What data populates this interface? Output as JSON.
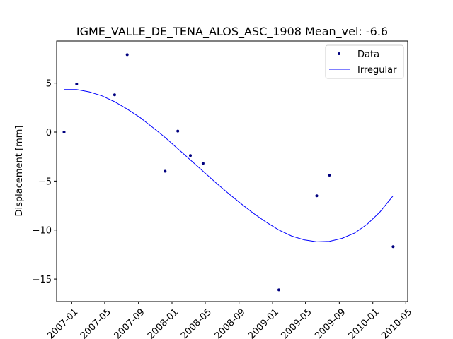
{
  "chart_data": {
    "type": "scatter",
    "title": "IGME_VALLE_DE_TENA_ALOS_ASC_1908    Mean_vel: -6.6",
    "xlabel": "",
    "ylabel": "Displacement [mm]",
    "x_axis_type": "date",
    "xlim": [
      "2006-11-07",
      "2010-05-08"
    ],
    "ylim": [
      -17.3,
      9.3
    ],
    "xticks": [
      "2007-01",
      "2007-05",
      "2007-09",
      "2008-01",
      "2008-05",
      "2008-09",
      "2009-01",
      "2009-05",
      "2009-09",
      "2010-01",
      "2010-05"
    ],
    "yticks": [
      5,
      0,
      -5,
      -10,
      -15
    ],
    "grid": false,
    "legend": {
      "position": "top-right",
      "entries": [
        "Data",
        "Irregular"
      ]
    },
    "series": [
      {
        "name": "Data",
        "kind": "scatter",
        "color": "#00007f",
        "points": [
          {
            "x": "2006-12-04",
            "y": 0.0
          },
          {
            "x": "2007-01-19",
            "y": 4.9
          },
          {
            "x": "2007-06-06",
            "y": 3.8
          },
          {
            "x": "2007-07-22",
            "y": 7.9
          },
          {
            "x": "2007-12-07",
            "y": -4.0
          },
          {
            "x": "2008-01-22",
            "y": 0.1
          },
          {
            "x": "2008-03-08",
            "y": -2.4
          },
          {
            "x": "2008-04-23",
            "y": -3.2
          },
          {
            "x": "2009-01-24",
            "y": -16.1
          },
          {
            "x": "2009-06-11",
            "y": -6.5
          },
          {
            "x": "2009-07-27",
            "y": -4.4
          },
          {
            "x": "2010-03-16",
            "y": -11.7
          }
        ]
      },
      {
        "name": "Irregular",
        "kind": "line",
        "color": "#0000ff",
        "points": [
          {
            "x": "2006-12-04",
            "y": 4.35
          },
          {
            "x": "2007-01-19",
            "y": 4.35
          },
          {
            "x": "2007-03-06",
            "y": 4.1
          },
          {
            "x": "2007-04-21",
            "y": 3.7
          },
          {
            "x": "2007-06-06",
            "y": 3.1
          },
          {
            "x": "2007-07-22",
            "y": 2.35
          },
          {
            "x": "2007-09-06",
            "y": 1.5
          },
          {
            "x": "2007-10-22",
            "y": 0.5
          },
          {
            "x": "2007-12-07",
            "y": -0.55
          },
          {
            "x": "2008-01-22",
            "y": -1.7
          },
          {
            "x": "2008-03-08",
            "y": -2.85
          },
          {
            "x": "2008-04-23",
            "y": -4.0
          },
          {
            "x": "2008-06-08",
            "y": -5.15
          },
          {
            "x": "2008-07-24",
            "y": -6.25
          },
          {
            "x": "2008-09-08",
            "y": -7.3
          },
          {
            "x": "2008-10-24",
            "y": -8.3
          },
          {
            "x": "2008-12-09",
            "y": -9.2
          },
          {
            "x": "2009-01-24",
            "y": -10.0
          },
          {
            "x": "2009-03-11",
            "y": -10.6
          },
          {
            "x": "2009-04-26",
            "y": -11.0
          },
          {
            "x": "2009-06-11",
            "y": -11.2
          },
          {
            "x": "2009-07-27",
            "y": -11.15
          },
          {
            "x": "2009-09-11",
            "y": -10.85
          },
          {
            "x": "2009-10-27",
            "y": -10.3
          },
          {
            "x": "2009-12-12",
            "y": -9.4
          },
          {
            "x": "2010-01-27",
            "y": -8.15
          },
          {
            "x": "2010-03-16",
            "y": -6.5
          }
        ]
      }
    ]
  }
}
